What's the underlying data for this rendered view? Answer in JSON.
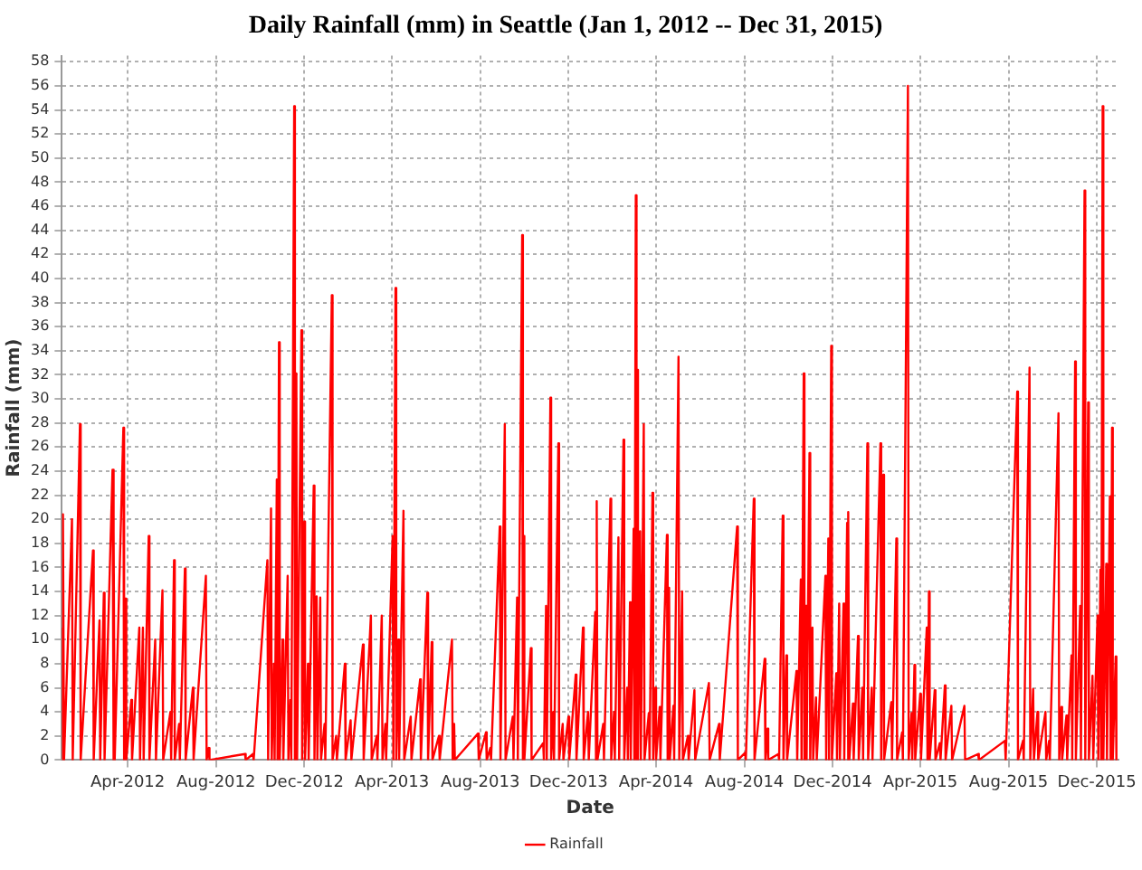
{
  "chart_data": {
    "type": "line",
    "title": "Daily Rainfall (mm) in Seattle (Jan 1, 2012 -- Dec 31, 2015)",
    "xlabel": "Date",
    "ylabel": "Rainfall (mm)",
    "x": [
      "2012-01-01",
      "2012-01-02",
      "2012-01-03",
      "2012-01-04",
      "2012-01-15",
      "2012-01-16",
      "2012-01-26",
      "2012-01-27",
      "2012-02-13",
      "2012-02-14",
      "2012-02-22",
      "2012-02-23",
      "2012-02-28",
      "2012-02-29",
      "2012-03-11",
      "2012-03-12",
      "2012-03-13",
      "2012-03-14",
      "2012-03-26",
      "2012-03-27",
      "2012-03-29",
      "2012-03-30",
      "2012-04-06",
      "2012-04-07",
      "2012-04-17",
      "2012-04-18",
      "2012-04-22",
      "2012-04-23",
      "2012-04-30",
      "2012-05-01",
      "2012-05-09",
      "2012-05-10",
      "2012-05-19",
      "2012-05-20",
      "2012-05-30",
      "2012-05-31",
      "2012-06-04",
      "2012-06-05",
      "2012-06-11",
      "2012-06-12",
      "2012-06-19",
      "2012-06-20",
      "2012-06-30",
      "2012-07-01",
      "2012-07-18",
      "2012-07-19",
      "2012-07-22",
      "2012-07-23",
      "2012-09-10",
      "2012-09-11",
      "2012-09-21",
      "2012-09-22",
      "2012-10-11",
      "2012-10-12",
      "2012-10-16",
      "2012-10-17",
      "2012-10-20",
      "2012-10-21",
      "2012-10-24",
      "2012-10-25",
      "2012-10-27",
      "2012-10-28",
      "2012-11-01",
      "2012-11-02",
      "2012-11-08",
      "2012-11-09",
      "2012-11-12",
      "2012-11-13",
      "2012-11-17",
      "2012-11-18",
      "2012-11-20",
      "2012-11-21",
      "2012-11-27",
      "2012-11-28",
      "2012-12-01",
      "2012-12-02",
      "2012-12-06",
      "2012-12-07",
      "2012-12-14",
      "2012-12-15",
      "2012-12-18",
      "2012-12-19",
      "2012-12-23",
      "2012-12-24",
      "2012-12-29",
      "2012-12-30",
      "2013-01-08",
      "2013-01-09",
      "2013-01-14",
      "2013-01-15",
      "2013-01-26",
      "2013-01-27",
      "2013-02-03",
      "2013-02-04",
      "2013-02-20",
      "2013-02-21",
      "2013-03-03",
      "2013-03-04",
      "2013-03-11",
      "2013-03-12",
      "2013-03-18",
      "2013-03-19",
      "2013-03-23",
      "2013-03-24",
      "2013-04-02",
      "2013-04-03",
      "2013-04-06",
      "2013-04-07",
      "2013-04-10",
      "2013-04-11",
      "2013-04-17",
      "2013-04-18",
      "2013-04-27",
      "2013-04-28",
      "2013-05-10",
      "2013-05-11",
      "2013-05-20",
      "2013-05-21",
      "2013-05-26",
      "2013-05-27",
      "2013-06-05",
      "2013-06-06",
      "2013-06-23",
      "2013-06-24",
      "2013-06-26",
      "2013-06-27",
      "2013-07-29",
      "2013-07-30",
      "2013-08-09",
      "2013-08-10",
      "2013-08-15",
      "2013-08-16",
      "2013-08-28",
      "2013-08-29",
      "2013-09-04",
      "2013-09-05",
      "2013-09-15",
      "2013-09-16",
      "2013-09-21",
      "2013-09-22",
      "2013-09-28",
      "2013-09-29",
      "2013-09-30",
      "2013-10-01",
      "2013-10-10",
      "2013-10-11",
      "2013-10-27",
      "2013-10-28",
      "2013-10-31",
      "2013-11-01",
      "2013-11-06",
      "2013-11-07",
      "2013-11-10",
      "2013-11-11",
      "2013-11-17",
      "2013-11-18",
      "2013-11-23",
      "2013-11-24",
      "2013-12-01",
      "2013-12-02",
      "2013-12-11",
      "2013-12-12",
      "2013-12-21",
      "2013-12-22",
      "2013-12-28",
      "2013-12-29",
      "2014-01-07",
      "2014-01-08",
      "2014-01-09",
      "2014-01-10",
      "2014-01-18",
      "2014-01-19",
      "2014-01-28",
      "2014-01-29",
      "2014-02-02",
      "2014-02-03",
      "2014-02-08",
      "2014-02-09",
      "2014-02-15",
      "2014-02-16",
      "2014-02-20",
      "2014-02-21",
      "2014-02-24",
      "2014-02-25",
      "2014-03-01",
      "2014-03-02",
      "2014-03-04",
      "2014-03-05",
      "2014-03-06",
      "2014-03-07",
      "2014-03-10",
      "2014-03-11",
      "2014-03-15",
      "2014-03-16",
      "2014-03-22",
      "2014-03-23",
      "2014-03-27",
      "2014-03-28",
      "2014-03-31",
      "2014-04-01",
      "2014-04-06",
      "2014-04-07",
      "2014-04-16",
      "2014-04-17",
      "2014-04-19",
      "2014-04-20",
      "2014-04-25",
      "2014-04-26",
      "2014-05-02",
      "2014-05-03",
      "2014-05-07",
      "2014-05-08",
      "2014-05-15",
      "2014-05-16",
      "2014-05-24",
      "2014-05-25",
      "2014-06-13",
      "2014-06-14",
      "2014-06-27",
      "2014-06-28",
      "2014-07-22",
      "2014-07-23",
      "2014-08-02",
      "2014-08-03",
      "2014-08-14",
      "2014-08-15",
      "2014-08-29",
      "2014-08-30",
      "2014-09-02",
      "2014-09-03",
      "2014-09-17",
      "2014-09-18",
      "2014-09-23",
      "2014-09-24",
      "2014-09-28",
      "2014-09-29",
      "2014-10-12",
      "2014-10-13",
      "2014-10-18",
      "2014-10-19",
      "2014-10-22",
      "2014-10-23",
      "2014-10-25",
      "2014-10-26",
      "2014-10-30",
      "2014-10-31",
      "2014-11-03",
      "2014-11-04",
      "2014-11-08",
      "2014-11-09",
      "2014-11-21",
      "2014-11-22",
      "2014-11-25",
      "2014-11-26",
      "2014-11-29",
      "2014-11-30",
      "2014-12-06",
      "2014-12-07",
      "2014-12-10",
      "2014-12-11",
      "2014-12-16",
      "2014-12-17",
      "2014-12-21",
      "2014-12-22",
      "2014-12-23",
      "2014-12-24",
      "2014-12-29",
      "2014-12-30",
      "2015-01-05",
      "2015-01-06",
      "2015-01-11",
      "2015-01-12",
      "2015-01-18",
      "2015-01-19",
      "2015-01-24",
      "2015-01-25",
      "2015-02-05",
      "2015-02-06",
      "2015-02-09",
      "2015-02-10",
      "2015-02-20",
      "2015-02-21",
      "2015-02-27",
      "2015-02-28",
      "2015-03-07",
      "2015-03-08",
      "2015-03-15",
      "2015-03-16",
      "2015-03-20",
      "2015-03-21",
      "2015-03-24",
      "2015-03-25",
      "2015-04-01",
      "2015-04-02",
      "2015-04-10",
      "2015-04-11",
      "2015-04-13",
      "2015-04-14",
      "2015-04-21",
      "2015-04-22",
      "2015-04-28",
      "2015-04-29",
      "2015-05-05",
      "2015-05-06",
      "2015-05-14",
      "2015-05-15",
      "2015-06-01",
      "2015-06-02",
      "2015-06-20",
      "2015-06-21",
      "2015-07-27",
      "2015-07-28",
      "2015-08-13",
      "2015-08-14",
      "2015-08-21",
      "2015-08-22",
      "2015-08-30",
      "2015-08-31",
      "2015-09-04",
      "2015-09-05",
      "2015-09-10",
      "2015-09-11",
      "2015-09-21",
      "2015-09-22",
      "2015-09-26",
      "2015-09-27",
      "2015-10-09",
      "2015-10-10",
      "2015-10-13",
      "2015-10-14",
      "2015-10-20",
      "2015-10-21",
      "2015-10-27",
      "2015-10-28",
      "2015-11-01",
      "2015-11-02",
      "2015-11-08",
      "2015-11-09",
      "2015-11-14",
      "2015-11-15",
      "2015-11-19",
      "2015-11-20",
      "2015-11-25",
      "2015-11-26",
      "2015-12-02",
      "2015-12-03",
      "2015-12-06",
      "2015-12-07",
      "2015-12-09",
      "2015-12-10",
      "2015-12-14",
      "2015-12-15",
      "2015-12-19",
      "2015-12-20",
      "2015-12-22",
      "2015-12-23",
      "2015-12-27",
      "2015-12-28"
    ],
    "series": [
      {
        "name": "Rainfall",
        "color": "#ff0000",
        "values": [
          11,
          0,
          20.4,
          0,
          20,
          0,
          27.9,
          0,
          17.4,
          0,
          11.6,
          0,
          13.9,
          0,
          24.1,
          0,
          19,
          0,
          27.6,
          0,
          13.4,
          0,
          5,
          0,
          11,
          0,
          11,
          0,
          18.6,
          0,
          10,
          0,
          14.1,
          0,
          4,
          0,
          16.6,
          0,
          3,
          0,
          15.9,
          0,
          6,
          0,
          15.3,
          0,
          1,
          0,
          0.5,
          0,
          0.5,
          0,
          16.6,
          0,
          20.9,
          0,
          8,
          0,
          23.3,
          0,
          34.7,
          0,
          10,
          0,
          15.3,
          0,
          5,
          0,
          54.3,
          0,
          32.1,
          0,
          35.7,
          0,
          19.8,
          0,
          8,
          0,
          22.8,
          0,
          13.6,
          0,
          13.5,
          0,
          3,
          0,
          38.6,
          0,
          2,
          0,
          8,
          0,
          3.3,
          0,
          9.6,
          0,
          12,
          0,
          2,
          0,
          12,
          0,
          3,
          0,
          18.6,
          0,
          39.2,
          0,
          10,
          0,
          20.7,
          0,
          3.6,
          0,
          6.7,
          0,
          13.9,
          0,
          9.8,
          0,
          2,
          0,
          10,
          0,
          3,
          0,
          2.2,
          0,
          2.3,
          0,
          1,
          0,
          19.4,
          0,
          27.9,
          0,
          3.6,
          0,
          13.5,
          0,
          43.6,
          0,
          18.6,
          0,
          9.3,
          0,
          1.4,
          0,
          12.8,
          0,
          30.1,
          0,
          4,
          0,
          26.3,
          0,
          3,
          0,
          3.6,
          0,
          7.1,
          0,
          11,
          0,
          4,
          0,
          12.3,
          0,
          21.5,
          0,
          3,
          0,
          21.7,
          0,
          4,
          0,
          18.5,
          0,
          26.6,
          0,
          6,
          0,
          13.1,
          0,
          19.2,
          0,
          46.9,
          0,
          32.4,
          0,
          19,
          0,
          27.9,
          0,
          3.9,
          0,
          22.2,
          0,
          6,
          0,
          4.4,
          0,
          18.7,
          0,
          14.3,
          0,
          4.5,
          0,
          33.5,
          0,
          14,
          0,
          2,
          0,
          5.8,
          0,
          6.4,
          0,
          3,
          0,
          19.4,
          0,
          0.6,
          0,
          21.7,
          0,
          8.4,
          0,
          2.6,
          0,
          0.5,
          0,
          20.3,
          0,
          8.7,
          0,
          7.4,
          0,
          15,
          0,
          32.1,
          0,
          12.8,
          0,
          25.5,
          0,
          11,
          0,
          5.2,
          0,
          15.3,
          0,
          18.4,
          0,
          34.4,
          0,
          7.2,
          0,
          13,
          0,
          13,
          0,
          19.7,
          0,
          20.6,
          0,
          4.7,
          0,
          10.3,
          0,
          6,
          0,
          26.3,
          0,
          6,
          0,
          26.3,
          0,
          23.7,
          0,
          4.8,
          0,
          18.4,
          0,
          2.3,
          0,
          56,
          0,
          3.9,
          0,
          7.9,
          0,
          5.5,
          0,
          11,
          0,
          14,
          0,
          5.8,
          0,
          1.4,
          0,
          6.2,
          0,
          4.5,
          0,
          4.5,
          0,
          0.5,
          0,
          1.6,
          0,
          30.6,
          0,
          1.6,
          0,
          32.6,
          0,
          5.9,
          0,
          4,
          0,
          4,
          0,
          1.6,
          0,
          28.8,
          0,
          4.4,
          0,
          3.7,
          0,
          8.7,
          0,
          33.1,
          0,
          12.8,
          0,
          47.3,
          0,
          29.7,
          0,
          7,
          0,
          12,
          0,
          15.8,
          0,
          54.3,
          0,
          16.3,
          0,
          21.9,
          0,
          27.6,
          0,
          8.6,
          0
        ]
      }
    ],
    "xlim": [
      "2012-01-01",
      "2015-12-31"
    ],
    "xticks": [
      {
        "value": "2012-04-01",
        "label": "Apr-2012"
      },
      {
        "value": "2012-08-01",
        "label": "Aug-2012"
      },
      {
        "value": "2012-12-01",
        "label": "Dec-2012"
      },
      {
        "value": "2013-04-01",
        "label": "Apr-2013"
      },
      {
        "value": "2013-08-01",
        "label": "Aug-2013"
      },
      {
        "value": "2013-12-01",
        "label": "Dec-2013"
      },
      {
        "value": "2014-04-01",
        "label": "Apr-2014"
      },
      {
        "value": "2014-08-01",
        "label": "Aug-2014"
      },
      {
        "value": "2014-12-01",
        "label": "Dec-2014"
      },
      {
        "value": "2015-04-01",
        "label": "Apr-2015"
      },
      {
        "value": "2015-08-01",
        "label": "Aug-2015"
      },
      {
        "value": "2015-12-01",
        "label": "Dec-2015"
      }
    ],
    "ylim": [
      0,
      58.5
    ],
    "yticks": [
      0,
      2,
      4,
      6,
      8,
      10,
      12,
      14,
      16,
      18,
      20,
      22,
      24,
      26,
      28,
      30,
      32,
      34,
      36,
      38,
      40,
      42,
      44,
      46,
      48,
      50,
      52,
      54,
      56,
      58
    ],
    "grid": true,
    "legend": "bottom",
    "marker": "none"
  }
}
